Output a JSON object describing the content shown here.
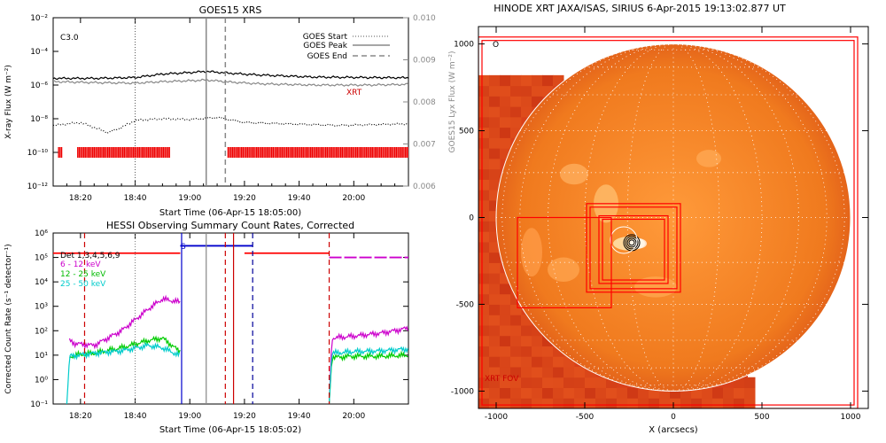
{
  "chart_data": [
    {
      "type": "line",
      "title": "GOES15 XRS",
      "flare_class": "C3.0",
      "xlabel": "Start Time (06-Apr-15 18:05:00)",
      "ylabel": "X-ray Flux (W m⁻²)",
      "ylabel_right": "GOES15 Lyx Flux (W m⁻²)",
      "x_ticks": [
        "18:20",
        "18:40",
        "19:00",
        "19:20",
        "19:40",
        "20:00"
      ],
      "y_ticks": [
        "10⁻²",
        "10⁻⁴",
        "10⁻⁶",
        "10⁻⁸",
        "10⁻¹⁰",
        "10⁻¹²"
      ],
      "y_ticks_right": [
        "0.010",
        "0.009",
        "0.008",
        "0.007",
        "0.006"
      ],
      "ylim": [
        1e-12,
        0.01
      ],
      "ylim_right": [
        0.006,
        0.01
      ],
      "xlim_minutes": [
        5,
        135
      ],
      "legend": [
        "GOES Start",
        "GOES Peak",
        "GOES End"
      ],
      "xrt_label": "XRT",
      "markers_min": {
        "start": 35,
        "peak": 61,
        "end": 68
      },
      "series": [
        {
          "name": "",
          "color": "#000000",
          "x_min": [
            5,
            20,
            35,
            45,
            55,
            61,
            70,
            80,
            100,
            120,
            135
          ],
          "values": [
            2.5e-06,
            2.5e-06,
            2.8e-06,
            4.5e-06,
            5.5e-06,
            6.5e-06,
            5e-06,
            4e-06,
            3e-06,
            2.8e-06,
            2.7e-06
          ]
        },
        {
          "name": "",
          "color": "#888888",
          "x_min": [
            5,
            20,
            35,
            45,
            55,
            61,
            70,
            80,
            100,
            120,
            135
          ],
          "values": [
            1.6e-06,
            1.4e-06,
            1.3e-06,
            1.6e-06,
            1.8e-06,
            2e-06,
            1.5e-06,
            1.2e-06,
            1e-06,
            1e-06,
            1.1e-06
          ]
        },
        {
          "name": "",
          "color": "#000000",
          "style": "dotted",
          "x_min": [
            5,
            15,
            25,
            30,
            35,
            45,
            55,
            65,
            75,
            90,
            110,
            135
          ],
          "values": [
            4e-09,
            6e-09,
            1.5e-09,
            3e-09,
            8e-09,
            1e-08,
            9e-09,
            1.2e-08,
            6e-09,
            5e-09,
            4e-09,
            5e-09
          ]
        }
      ],
      "xrt_segments_min": [
        [
          7,
          8.5
        ],
        [
          14,
          48
        ],
        [
          69,
          135
        ]
      ]
    },
    {
      "type": "line",
      "title": "HESSI Observing Summary Count Rates, Corrected",
      "xlabel": "Start Time (06-Apr-15 18:05:02)",
      "ylabel": "Corrected Count Rate (s⁻¹ detector⁻¹)",
      "x_ticks": [
        "18:20",
        "18:40",
        "19:00",
        "19:20",
        "19:40",
        "20:00"
      ],
      "y_ticks": [
        "10⁶",
        "10⁵",
        "10⁴",
        "10³",
        "10²",
        "10¹",
        "10⁰",
        "10⁻¹"
      ],
      "ylim": [
        0.1,
        1000000.0
      ],
      "xlim_minutes": [
        5,
        135
      ],
      "s_marker": "S",
      "legend": [
        {
          "name": "Det 1,3,4,5,6,9",
          "color": "#000000"
        },
        {
          "name": "6 - 12 keV",
          "color": "#cc00cc"
        },
        {
          "name": "12 - 25 keV",
          "color": "#00cc00"
        },
        {
          "name": "25 - 50 keV",
          "color": "#00cccc"
        }
      ],
      "series": [
        {
          "name": "6 - 12 keV",
          "color": "#cc00cc",
          "x_min": [
            11,
            13,
            20,
            30,
            40,
            45,
            51,
            51.5
          ],
          "values": [
            40,
            30,
            25,
            100,
            800,
            2000,
            1500,
            1500
          ]
        },
        {
          "name": "12 - 25 keV",
          "color": "#00cc00",
          "x_min": [
            11,
            13,
            20,
            30,
            40,
            45,
            51,
            51.5
          ],
          "values": [
            8,
            10,
            12,
            20,
            40,
            50,
            15,
            15
          ]
        },
        {
          "name": "25 - 50 keV",
          "color": "#00cccc",
          "x_min": [
            10,
            11,
            20,
            30,
            40,
            45,
            51,
            51.5
          ],
          "values": [
            0.1,
            9,
            12,
            15,
            25,
            20,
            10,
            10
          ]
        },
        {
          "name": "6 - 12 keV",
          "color": "#cc00cc",
          "x_min": [
            106,
            107,
            115,
            125,
            130,
            135
          ],
          "values": [
            0.1,
            50,
            60,
            80,
            100,
            130
          ]
        },
        {
          "name": "12 - 25 keV",
          "color": "#00cc00",
          "x_min": [
            106,
            107,
            115,
            125,
            135
          ],
          "values": [
            0.1,
            8,
            9,
            9,
            10
          ]
        },
        {
          "name": "25 - 50 keV",
          "color": "#00cccc",
          "x_min": [
            106,
            107,
            115,
            125,
            135
          ],
          "values": [
            0.1,
            12,
            14,
            15,
            18
          ]
        }
      ],
      "att_state": [
        {
          "x_min": [
            5,
            51.5
          ],
          "value": 150000.0,
          "color": "#ff0000"
        },
        {
          "x_min": [
            51.5,
            78
          ],
          "value": 300000.0,
          "color": "#0000cc"
        },
        {
          "x_min": [
            75,
            106
          ],
          "value": 150000.0,
          "color": "#ff0000"
        },
        {
          "x_min": [
            106,
            135
          ],
          "value": 100000.0,
          "color": "#cc00cc"
        }
      ],
      "vlines_min": [
        {
          "x": 16.5,
          "color": "#cc0000",
          "style": "dashed"
        },
        {
          "x": 35,
          "color": "#888888",
          "style": "dotted"
        },
        {
          "x": 52,
          "color": "#0000cc",
          "style": "solid"
        },
        {
          "x": 61,
          "color": "#888888",
          "style": "solid"
        },
        {
          "x": 68,
          "color": "#cc0000",
          "style": "dashed"
        },
        {
          "x": 71,
          "color": "#cc0000",
          "style": "solid"
        },
        {
          "x": 78,
          "color": "#000099",
          "style": "dashed"
        },
        {
          "x": 106,
          "color": "#cc0000",
          "style": "dashed"
        }
      ]
    },
    {
      "type": "heatmap",
      "title": "HINODE XRT JAXA/ISAS, SIRIUS   6-Apr-2015 19:13:02.877 UT",
      "xlabel": "X (arcsecs)",
      "ylabel": "",
      "x_ticks": [
        "-1000",
        "-500",
        "0",
        "500",
        "1000"
      ],
      "y_ticks": [
        "1000",
        "500",
        "0",
        "-500",
        "-1000"
      ],
      "xlim": [
        -1100,
        1100
      ],
      "ylim": [
        -1100,
        1100
      ],
      "fov_label": "XRT FOV",
      "corner_label": "O",
      "solar_radius_arcsec": 1000,
      "image_extent": {
        "x": [
          -1100,
          420
        ],
        "y": [
          -1100,
          780
        ]
      },
      "fov_boxes": [
        {
          "x": [
            -1100,
            1040
          ],
          "y": [
            -1100,
            1040
          ]
        },
        {
          "x": [
            -1080,
            1020
          ],
          "y": [
            -1080,
            1020
          ]
        },
        {
          "x": [
            -880,
            -350
          ],
          "y": [
            -520,
            0
          ]
        },
        {
          "x": [
            -490,
            40
          ],
          "y": [
            -430,
            80
          ]
        },
        {
          "x": [
            -470,
            20
          ],
          "y": [
            -410,
            60
          ]
        },
        {
          "x": [
            -420,
            -30
          ],
          "y": [
            -380,
            10
          ]
        },
        {
          "x": [
            -400,
            -50
          ],
          "y": [
            -360,
            -10
          ]
        }
      ],
      "flare_center": [
        -235,
        -145
      ]
    }
  ]
}
